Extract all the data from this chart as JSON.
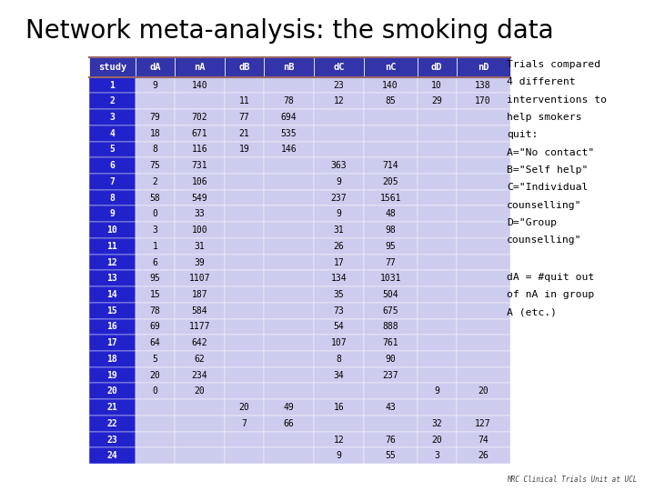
{
  "title": "Network meta-analysis: the smoking data",
  "title_color": "#000000",
  "title_fontsize": 20,
  "header": [
    "study",
    "dA",
    "nA",
    "dB",
    "nB",
    "dC",
    "nC",
    "dD",
    "nD"
  ],
  "header_bg": "#3333aa",
  "header_text_color": "#ffffff",
  "row_bg": "#ccccee",
  "study_col_bg": "#2222cc",
  "study_text_color": "#ffffff",
  "rows": [
    [
      1,
      9,
      140,
      "",
      "",
      23,
      140,
      10,
      138
    ],
    [
      2,
      "",
      "",
      11,
      78,
      12,
      85,
      29,
      170
    ],
    [
      3,
      79,
      702,
      77,
      694,
      "",
      "",
      "",
      ""
    ],
    [
      4,
      18,
      671,
      21,
      535,
      "",
      "",
      "",
      ""
    ],
    [
      5,
      8,
      116,
      19,
      146,
      "",
      "",
      "",
      ""
    ],
    [
      6,
      75,
      731,
      "",
      "",
      363,
      714,
      "",
      ""
    ],
    [
      7,
      2,
      106,
      "",
      "",
      9,
      205,
      "",
      ""
    ],
    [
      8,
      58,
      549,
      "",
      "",
      237,
      1561,
      "",
      ""
    ],
    [
      9,
      0,
      33,
      "",
      "",
      9,
      48,
      "",
      ""
    ],
    [
      10,
      3,
      100,
      "",
      "",
      31,
      98,
      "",
      ""
    ],
    [
      11,
      1,
      31,
      "",
      "",
      26,
      95,
      "",
      ""
    ],
    [
      12,
      6,
      39,
      "",
      "",
      17,
      77,
      "",
      ""
    ],
    [
      13,
      95,
      1107,
      "",
      "",
      134,
      1031,
      "",
      ""
    ],
    [
      14,
      15,
      187,
      "",
      "",
      35,
      504,
      "",
      ""
    ],
    [
      15,
      78,
      584,
      "",
      "",
      73,
      675,
      "",
      ""
    ],
    [
      16,
      69,
      1177,
      "",
      "",
      54,
      888,
      "",
      ""
    ],
    [
      17,
      64,
      642,
      "",
      "",
      107,
      761,
      "",
      ""
    ],
    [
      18,
      5,
      62,
      "",
      "",
      8,
      90,
      "",
      ""
    ],
    [
      19,
      20,
      234,
      "",
      "",
      34,
      237,
      "",
      ""
    ],
    [
      20,
      0,
      20,
      "",
      "",
      "",
      "",
      9,
      20
    ],
    [
      21,
      "",
      "",
      20,
      49,
      16,
      43,
      "",
      ""
    ],
    [
      22,
      "",
      "",
      7,
      66,
      "",
      "",
      32,
      127
    ],
    [
      23,
      "",
      "",
      "",
      "",
      12,
      76,
      20,
      74
    ],
    [
      24,
      "",
      "",
      "",
      "",
      9,
      55,
      3,
      26
    ]
  ],
  "annotation_lines": [
    "Trials compared",
    "4 different",
    "interventions to",
    "help smokers",
    "quit:",
    "A=\"No contact\"",
    "B=\"Self help\"",
    "C=\"Individual",
    "counselling\"",
    "D=\"Group",
    "counselling\""
  ],
  "annotation2_lines": [
    "dA = #quit out",
    "of nA in group",
    "A (etc.)"
  ],
  "footer": "MRC Clinical Trials Unit at UCL",
  "bg_color": "#ffffff",
  "line_color": "#996666"
}
